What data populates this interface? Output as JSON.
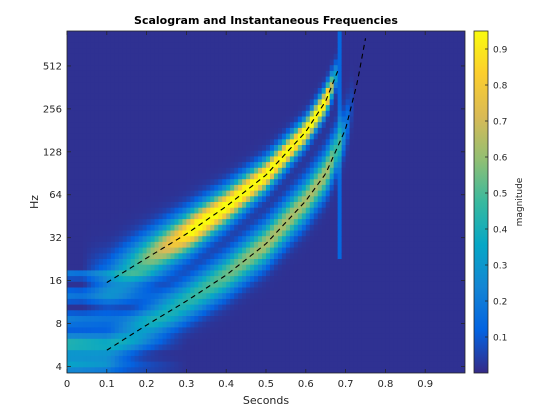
{
  "chart_data": {
    "type": "heatmap",
    "title": "Scalogram and Instantaneous Frequencies",
    "xlabel": "Seconds",
    "ylabel": "Hz",
    "xlim": [
      0,
      1
    ],
    "ylim": [
      3.6,
      900
    ],
    "y_scale": "log2",
    "x_ticks": [
      0,
      0.1,
      0.2,
      0.3,
      0.4,
      0.5,
      0.6,
      0.7,
      0.8,
      0.9
    ],
    "x_tick_labels": [
      "0",
      "0.1",
      "0.2",
      "0.3",
      "0.4",
      "0.5",
      "0.6",
      "0.7",
      "0.8",
      "0.9"
    ],
    "y_ticks": [
      4,
      8,
      16,
      32,
      64,
      128,
      256,
      512
    ],
    "y_tick_labels": [
      "4",
      "8",
      "16",
      "32",
      "64",
      "128",
      "256",
      "512"
    ],
    "colorbar": {
      "label": "magnitude",
      "range": [
        0,
        0.95
      ],
      "ticks": [
        0.1,
        0.2,
        0.3,
        0.4,
        0.5,
        0.6,
        0.7,
        0.8,
        0.9
      ],
      "tick_labels": [
        "0.1",
        "0.2",
        "0.3",
        "0.4",
        "0.5",
        "0.6",
        "0.7",
        "0.8",
        "0.9"
      ],
      "colormap": "parula"
    },
    "colormap_stops": [
      "#352a87",
      "#0363e1",
      "#1485d4",
      "#06a7c6",
      "#38b99e",
      "#92bf73",
      "#d9ba56",
      "#fcce2e",
      "#f9fb0e"
    ],
    "ridges": [
      {
        "x": [
          0.1,
          0.2,
          0.3,
          0.4,
          0.5,
          0.6,
          0.65,
          0.68
        ],
        "y": [
          15.5,
          23,
          34,
          53,
          88,
          177,
          290,
          470
        ],
        "peak_magnitude": 0.92
      },
      {
        "x": [
          0.1,
          0.2,
          0.3,
          0.4,
          0.5,
          0.6,
          0.65,
          0.7,
          0.73,
          0.75
        ],
        "y": [
          5.2,
          7.8,
          11.5,
          17.5,
          29,
          58,
          90,
          185,
          400,
          800
        ],
        "peak_magnitude": 0.65
      }
    ],
    "curve_style": "dashed black"
  }
}
